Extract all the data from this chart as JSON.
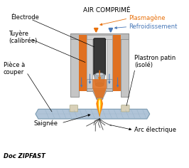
{
  "title": "AIR COMPRIMÉ",
  "bg_color": "#ffffff",
  "labels": {
    "electrode": "Électrode",
    "plasmagene": "Plasmagène",
    "refroidissement": "Refroidissement",
    "tuyere": "Tuyère\n(calibrée)",
    "piece": "Pièce à\ncouper",
    "plastron": "Plastron patin\n(isolé)",
    "saignee": "Saignée",
    "arc": "Arc électrique",
    "doc": "Doc ZIPFAST"
  },
  "colors": {
    "orange": "#E8700A",
    "blue_arrow": "#4878B8",
    "outer_gray": "#C8C8C8",
    "mid_gray": "#B0B0B0",
    "inner_gray": "#D8D8D8",
    "dark_gray": "#383838",
    "silver_top": "#C8C8C8",
    "silver_mid": "#A0A8B0",
    "light_gray": "#E0E0E0",
    "metal_plate": "#B8C8D8",
    "metal_plate2": "#A0B8C8",
    "black": "#000000",
    "plasmagene_color": "#E8700A",
    "refroid_color": "#4878B8",
    "white": "#ffffff",
    "spark_yellow": "#FFD000",
    "spark_orange": "#FF8000",
    "spark_white": "#FFFFFF",
    "blue_line": "#4070B0",
    "orange_fill": "#E07020"
  }
}
